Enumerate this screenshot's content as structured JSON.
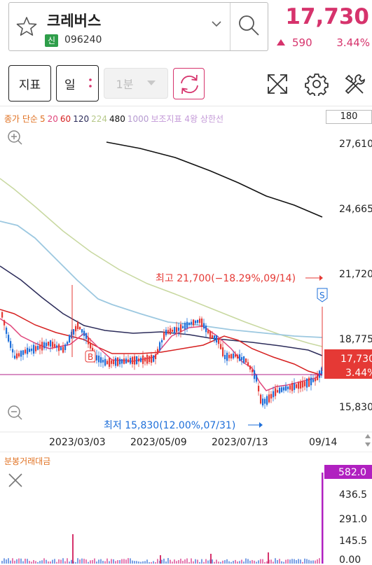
{
  "header": {
    "stock_name": "크레버스",
    "badge": "신",
    "stock_code": "096240",
    "price": "17,730",
    "change": "590",
    "change_pct": "3.44%"
  },
  "toolbar": {
    "indicator_label": "지표",
    "day_label": "일",
    "minute_label": "1분"
  },
  "legend": {
    "prefix": "종가 단순",
    "ma5": "5",
    "ma20": "20",
    "ma60": "60",
    "ma120": "120",
    "ma224": "224",
    "ma480": "480",
    "ma1000": "1000",
    "suffix": "보조지표 4왕 상한선",
    "period": "180"
  },
  "colors": {
    "accent": "#d6336c",
    "ma5": "#e0457b",
    "ma20": "#d62020",
    "ma60": "#2c2c5a",
    "ma120": "#9cc8e0",
    "ma224": "#c8d8a0",
    "ma480": "#111111",
    "ma1000": "#c6a8d8",
    "up": "#e53935",
    "down": "#1e6fd9"
  },
  "price_axis": {
    "labels": [
      "27,610",
      "24,665",
      "21,720",
      "18,775",
      "15,830"
    ],
    "current_price": "17,730",
    "current_pct": "3.44%"
  },
  "annotations": {
    "high": "최고 21,700(−18.29%,09/14)",
    "low": "최저 15,830(12.00%,07/31)",
    "marker_b": "B",
    "marker_s": "S"
  },
  "date_axis": [
    "2023/03/03",
    "2023/05/09",
    "2023/07/13",
    "09/14"
  ],
  "volume": {
    "title": "분봉거래대금",
    "labels": [
      "582.0",
      "436.5",
      "291.0",
      "145.5",
      "0.00"
    ]
  },
  "icons": [
    "star-icon",
    "chevron-down-icon",
    "search-icon",
    "refresh-icon",
    "expand-icon",
    "gear-icon",
    "tools-icon",
    "zoom-in-icon",
    "zoom-out-icon",
    "close-icon",
    "scroll-arrows-icon"
  ]
}
